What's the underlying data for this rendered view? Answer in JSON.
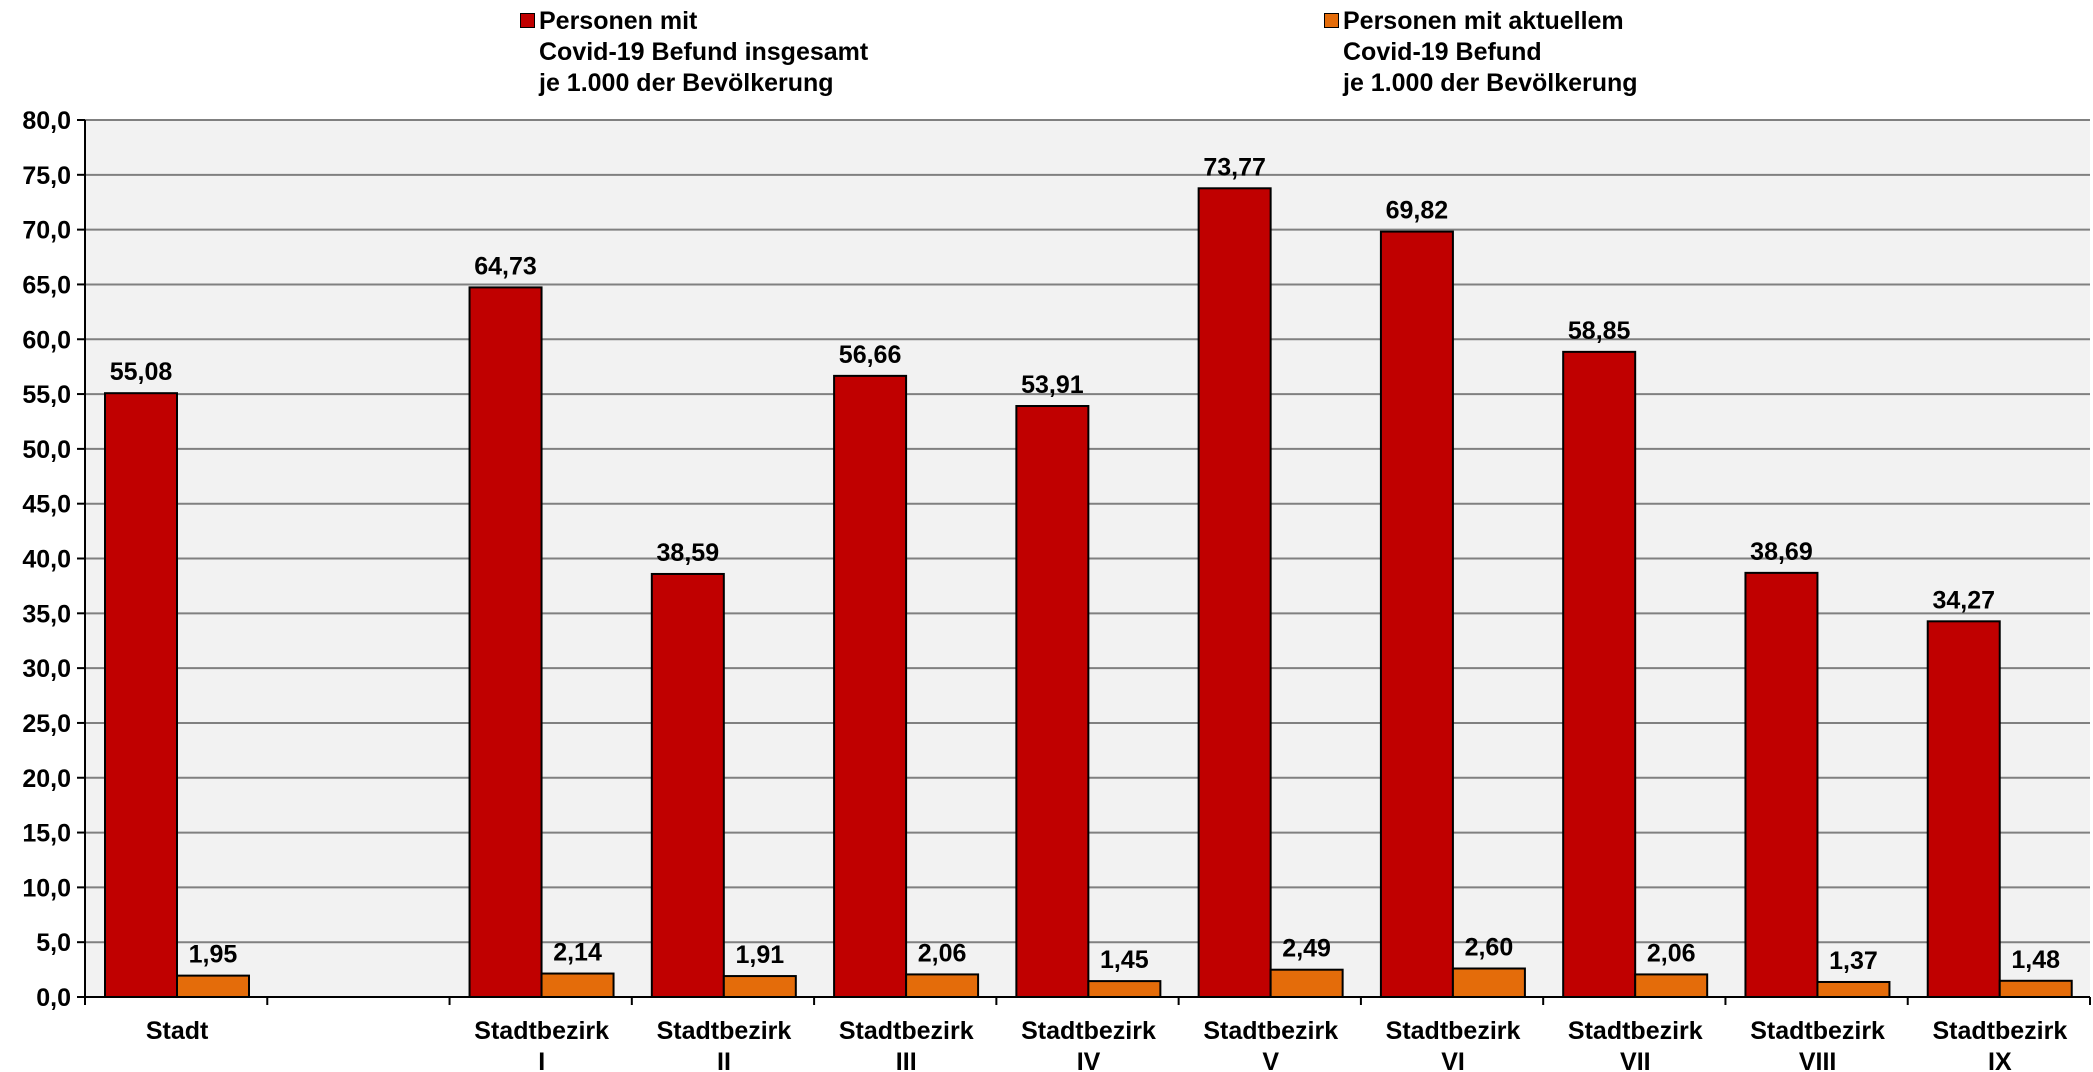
{
  "legend": {
    "series1": {
      "lines": [
        "Personen mit",
        "Covid-19 Befund insgesamt",
        "je 1.000 der Bevölkerung"
      ],
      "color": "#C00000"
    },
    "series2": {
      "lines": [
        "Personen mit aktuellem",
        "Covid-19 Befund",
        "je 1.000 der Bevölkerung"
      ],
      "color": "#E46C0A"
    }
  },
  "chart_data": {
    "type": "bar",
    "categories": [
      [
        "Stadt"
      ],
      [
        ""
      ],
      [
        "Stadtbezirk",
        "I"
      ],
      [
        "Stadtbezirk",
        "II"
      ],
      [
        "Stadtbezirk",
        "III"
      ],
      [
        "Stadtbezirk",
        "IV"
      ],
      [
        "Stadtbezirk",
        "V"
      ],
      [
        "Stadtbezirk",
        "VI"
      ],
      [
        "Stadtbezirk",
        "VII"
      ],
      [
        "Stadtbezirk",
        "VIII"
      ],
      [
        "Stadtbezirk",
        "IX"
      ]
    ],
    "series": [
      {
        "name": "Personen mit Covid-19 Befund insgesamt je 1.000 der Bevölkerung",
        "color": "#C00000",
        "values": [
          55.08,
          null,
          64.73,
          38.59,
          56.66,
          53.91,
          73.77,
          69.82,
          58.85,
          38.69,
          34.27
        ],
        "labels": [
          "55,08",
          "",
          "64,73",
          "38,59",
          "56,66",
          "53,91",
          "73,77",
          "69,82",
          "58,85",
          "38,69",
          "34,27"
        ]
      },
      {
        "name": "Personen mit aktuellem Covid-19 Befund je 1.000 der Bevölkerung",
        "color": "#E46C0A",
        "values": [
          1.95,
          null,
          2.14,
          1.91,
          2.06,
          1.45,
          2.49,
          2.6,
          2.06,
          1.37,
          1.48
        ],
        "labels": [
          "1,95",
          "",
          "2,14",
          "1,91",
          "2,06",
          "1,45",
          "2,49",
          "2,60",
          "2,06",
          "1,37",
          "1,48"
        ]
      }
    ],
    "ylim": [
      0,
      80
    ],
    "yticks": [
      0,
      5,
      10,
      15,
      20,
      25,
      30,
      35,
      40,
      45,
      50,
      55,
      60,
      65,
      70,
      75,
      80
    ],
    "ytick_labels": [
      "0,0",
      "5,0",
      "10,0",
      "15,0",
      "20,0",
      "25,0",
      "30,0",
      "35,0",
      "40,0",
      "45,0",
      "50,0",
      "55,0",
      "60,0",
      "65,0",
      "70,0",
      "75,0",
      "80,0"
    ],
    "grid": true,
    "plot_background": "#F2F2F2",
    "legend_position": "top",
    "title": "",
    "xlabel": "",
    "ylabel": ""
  }
}
